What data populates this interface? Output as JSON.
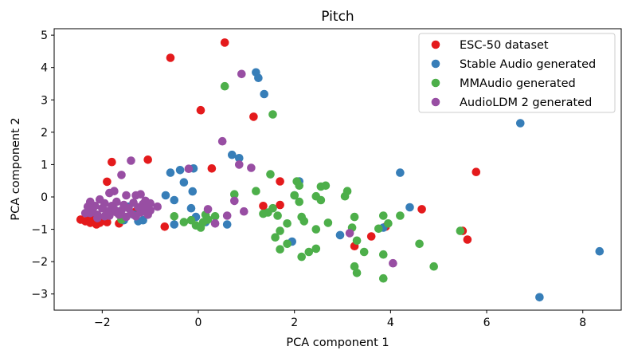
{
  "chart_data": {
    "type": "scatter",
    "title": "Pitch",
    "xlabel": "PCA component 1",
    "ylabel": "PCA component 2",
    "xlim": [
      -3.0,
      8.8
    ],
    "ylim": [
      -3.5,
      5.2
    ],
    "xticks": [
      -2,
      0,
      2,
      4,
      6,
      8
    ],
    "yticks": [
      -3,
      -2,
      -1,
      0,
      1,
      2,
      3,
      4,
      5
    ],
    "xtick_labels": [
      "−2",
      "0",
      "2",
      "4",
      "6",
      "8"
    ],
    "ytick_labels": [
      "−3",
      "−2",
      "−1",
      "0",
      "1",
      "2",
      "3",
      "4",
      "5"
    ],
    "grid": false,
    "legend_position": "top-right",
    "series": [
      {
        "name": "ESC-50 dataset",
        "color": "#e41a1c",
        "points": [
          [
            -2.45,
            -0.7
          ],
          [
            -2.35,
            -0.75
          ],
          [
            -2.3,
            -0.72
          ],
          [
            -2.25,
            -0.68
          ],
          [
            -2.2,
            -0.78
          ],
          [
            -2.15,
            -0.7
          ],
          [
            -2.1,
            -0.75
          ],
          [
            -2.05,
            -0.8
          ],
          [
            -2.0,
            -0.72
          ],
          [
            -1.95,
            -0.65
          ],
          [
            -1.9,
            -0.78
          ],
          [
            -2.25,
            -0.8
          ],
          [
            -2.12,
            -0.85
          ],
          [
            -1.9,
            0.47
          ],
          [
            -1.8,
            1.08
          ],
          [
            -1.05,
            1.15
          ],
          [
            -1.3,
            -0.45
          ],
          [
            -0.7,
            -0.92
          ],
          [
            -1.65,
            -0.82
          ],
          [
            -0.58,
            4.3
          ],
          [
            0.55,
            4.77
          ],
          [
            0.05,
            2.68
          ],
          [
            1.15,
            2.48
          ],
          [
            0.28,
            0.88
          ],
          [
            1.35,
            -0.28
          ],
          [
            1.7,
            0.48
          ],
          [
            1.7,
            -0.25
          ],
          [
            3.25,
            -1.52
          ],
          [
            3.6,
            -1.22
          ],
          [
            3.9,
            -0.92
          ],
          [
            4.65,
            -0.38
          ],
          [
            5.5,
            -1.05
          ],
          [
            5.6,
            -1.32
          ],
          [
            5.78,
            0.77
          ]
        ]
      },
      {
        "name": "Stable Audio generated",
        "color": "#377eb8",
        "points": [
          [
            1.2,
            3.85
          ],
          [
            1.25,
            3.68
          ],
          [
            1.37,
            3.18
          ],
          [
            0.7,
            1.3
          ],
          [
            0.85,
            1.2
          ],
          [
            -0.58,
            0.75
          ],
          [
            -0.38,
            0.83
          ],
          [
            -0.1,
            0.88
          ],
          [
            -0.3,
            0.45
          ],
          [
            -0.68,
            0.05
          ],
          [
            -0.12,
            0.17
          ],
          [
            -0.5,
            -0.1
          ],
          [
            -0.15,
            -0.35
          ],
          [
            -0.05,
            -0.62
          ],
          [
            0.15,
            -0.78
          ],
          [
            0.6,
            -0.85
          ],
          [
            -0.5,
            -0.85
          ],
          [
            -1.15,
            -0.72
          ],
          [
            -1.25,
            -0.75
          ],
          [
            -1.15,
            -0.45
          ],
          [
            -1.35,
            -0.55
          ],
          [
            -1.55,
            -0.72
          ],
          [
            -1.65,
            -0.45
          ],
          [
            -1.45,
            -0.3
          ],
          [
            2.1,
            0.48
          ],
          [
            2.0,
            0.05
          ],
          [
            1.95,
            -1.38
          ],
          [
            2.95,
            -1.18
          ],
          [
            4.2,
            0.75
          ],
          [
            4.4,
            -0.32
          ],
          [
            3.85,
            -0.95
          ],
          [
            6.7,
            2.28
          ],
          [
            8.35,
            -1.68
          ],
          [
            7.1,
            -3.1
          ]
        ]
      },
      {
        "name": "MMAudio generated",
        "color": "#4daf4a",
        "points": [
          [
            0.55,
            3.42
          ],
          [
            1.55,
            2.55
          ],
          [
            1.5,
            0.7
          ],
          [
            1.2,
            0.18
          ],
          [
            0.75,
            0.08
          ],
          [
            1.35,
            -0.52
          ],
          [
            1.45,
            -0.48
          ],
          [
            1.55,
            -0.35
          ],
          [
            1.65,
            -0.58
          ],
          [
            1.85,
            -0.82
          ],
          [
            1.7,
            -1.05
          ],
          [
            1.6,
            -1.25
          ],
          [
            1.85,
            -1.45
          ],
          [
            1.7,
            -1.62
          ],
          [
            2.05,
            0.48
          ],
          [
            2.1,
            0.35
          ],
          [
            2.0,
            0.05
          ],
          [
            2.1,
            -0.15
          ],
          [
            2.15,
            -0.62
          ],
          [
            2.2,
            -0.75
          ],
          [
            2.45,
            0.02
          ],
          [
            2.55,
            0.32
          ],
          [
            2.65,
            0.35
          ],
          [
            2.55,
            -0.1
          ],
          [
            2.7,
            -0.8
          ],
          [
            2.45,
            -1.0
          ],
          [
            2.3,
            -1.7
          ],
          [
            2.45,
            -1.6
          ],
          [
            2.15,
            -1.85
          ],
          [
            3.1,
            0.18
          ],
          [
            3.05,
            0.02
          ],
          [
            3.25,
            -0.62
          ],
          [
            3.2,
            -0.95
          ],
          [
            3.3,
            -1.35
          ],
          [
            3.45,
            -1.7
          ],
          [
            3.25,
            -2.15
          ],
          [
            3.3,
            -2.35
          ],
          [
            3.85,
            -0.58
          ],
          [
            3.75,
            -0.98
          ],
          [
            3.95,
            -0.82
          ],
          [
            3.85,
            -1.78
          ],
          [
            3.85,
            -2.52
          ],
          [
            4.2,
            -0.58
          ],
          [
            4.6,
            -1.45
          ],
          [
            4.9,
            -2.15
          ],
          [
            5.45,
            -1.05
          ],
          [
            0.35,
            -0.6
          ],
          [
            0.2,
            -0.7
          ],
          [
            0.1,
            -0.78
          ],
          [
            -0.15,
            -0.72
          ],
          [
            -0.05,
            -0.88
          ],
          [
            0.05,
            -0.95
          ],
          [
            -0.3,
            -0.78
          ],
          [
            -0.5,
            -0.6
          ],
          [
            0.15,
            -0.55
          ],
          [
            -1.6,
            -0.7
          ]
        ]
      },
      {
        "name": "AudioLDM 2 generated",
        "color": "#984ea3",
        "points": [
          [
            0.9,
            3.8
          ],
          [
            0.5,
            1.72
          ],
          [
            0.85,
            1.0
          ],
          [
            1.1,
            0.9
          ],
          [
            -0.2,
            0.87
          ],
          [
            0.75,
            -0.12
          ],
          [
            0.2,
            -0.38
          ],
          [
            0.6,
            -0.58
          ],
          [
            0.95,
            -0.45
          ],
          [
            0.35,
            -0.82
          ],
          [
            -0.85,
            -0.3
          ],
          [
            -1.0,
            -0.42
          ],
          [
            -1.05,
            -0.55
          ],
          [
            -1.1,
            -0.35
          ],
          [
            -1.15,
            -0.22
          ],
          [
            -1.2,
            -0.48
          ],
          [
            -1.25,
            -0.32
          ],
          [
            -1.3,
            -0.6
          ],
          [
            -1.35,
            -0.18
          ],
          [
            -1.4,
            -0.52
          ],
          [
            -1.45,
            -0.35
          ],
          [
            -1.5,
            0.05
          ],
          [
            -1.55,
            -0.25
          ],
          [
            -1.6,
            -0.42
          ],
          [
            -1.65,
            -0.55
          ],
          [
            -1.7,
            -0.15
          ],
          [
            -1.75,
            -0.38
          ],
          [
            -1.8,
            -0.28
          ],
          [
            -1.85,
            0.12
          ],
          [
            -1.9,
            -0.45
          ],
          [
            -1.95,
            -0.2
          ],
          [
            -2.0,
            -0.35
          ],
          [
            -2.05,
            -0.08
          ],
          [
            -2.1,
            -0.55
          ],
          [
            -2.15,
            -0.28
          ],
          [
            -2.2,
            -0.42
          ],
          [
            -2.25,
            -0.15
          ],
          [
            -2.3,
            -0.3
          ],
          [
            -2.35,
            -0.5
          ],
          [
            -1.75,
            0.18
          ],
          [
            -1.6,
            0.68
          ],
          [
            -1.4,
            1.12
          ],
          [
            -1.3,
            0.05
          ],
          [
            -1.2,
            0.08
          ],
          [
            -1.1,
            -0.12
          ],
          [
            -1.0,
            -0.2
          ],
          [
            -1.5,
            -0.62
          ],
          [
            -1.7,
            -0.48
          ],
          [
            -2.25,
            -0.5
          ],
          [
            -2.1,
            -0.65
          ],
          [
            -1.95,
            -0.6
          ],
          [
            -1.85,
            -0.58
          ],
          [
            3.15,
            -1.12
          ],
          [
            4.05,
            -2.05
          ]
        ]
      }
    ]
  }
}
